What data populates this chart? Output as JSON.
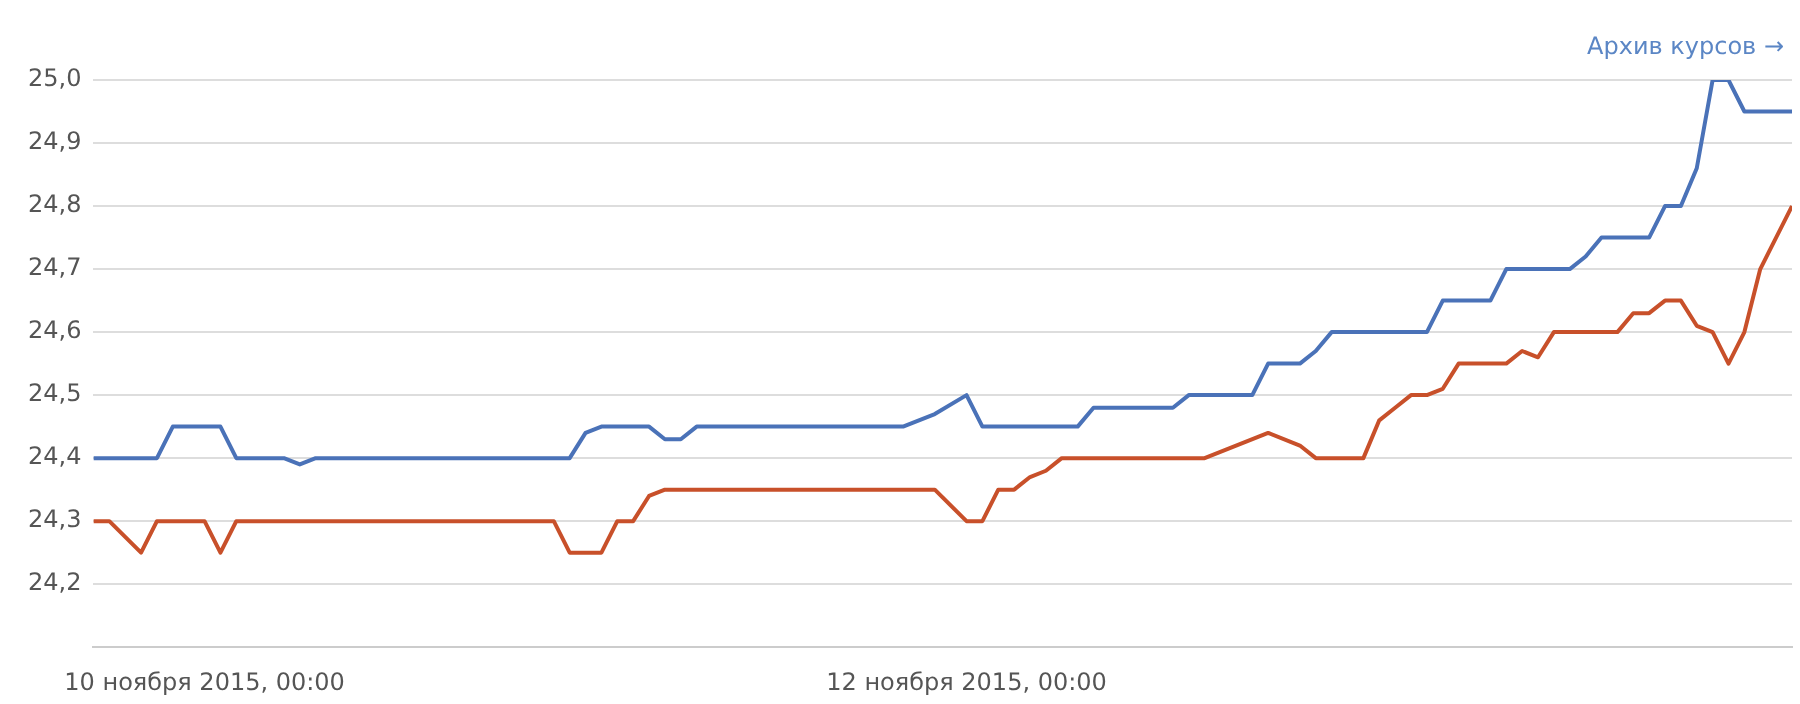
{
  "chart_data": {
    "type": "line",
    "annotations": [
      "Архив курсов →"
    ],
    "xlim": [
      "2015-11-09T17:00",
      "2015-11-14T04:00"
    ],
    "xticks": [
      {
        "value": "2015-11-10T00:00",
        "label": "10 ноября 2015, 00:00"
      },
      {
        "value": "2015-11-12T00:00",
        "label": "12 ноября 2015, 00:00"
      }
    ],
    "ylim": [
      24.1,
      25.0
    ],
    "yticks": [
      {
        "value": 24.2,
        "label": "24,2"
      },
      {
        "value": 24.3,
        "label": "24,3"
      },
      {
        "value": 24.4,
        "label": "24,4"
      },
      {
        "value": 24.5,
        "label": "24,5"
      },
      {
        "value": 24.6,
        "label": "24,6"
      },
      {
        "value": 24.7,
        "label": "24,7"
      },
      {
        "value": 24.8,
        "label": "24,8"
      },
      {
        "value": 24.9,
        "label": "24,9"
      },
      {
        "value": 25.0,
        "label": "25,0"
      }
    ],
    "grid": "y",
    "legend": false,
    "marker": "none",
    "line_style": "solid",
    "series": [
      {
        "color": "#4a72b8",
        "x": [
          "2015-11-09T17:00",
          "2015-11-09T21:00",
          "2015-11-09T22:00",
          "2015-11-10T01:00",
          "2015-11-10T02:00",
          "2015-11-10T05:00",
          "2015-11-10T06:00",
          "2015-11-10T07:00",
          "2015-11-10T23:00",
          "2015-11-11T00:00",
          "2015-11-11T01:00",
          "2015-11-11T04:00",
          "2015-11-11T05:00",
          "2015-11-11T06:00",
          "2015-11-11T07:00",
          "2015-11-11T20:00",
          "2015-11-11T22:00",
          "2015-11-12T00:00",
          "2015-11-12T01:00",
          "2015-11-12T07:00",
          "2015-11-12T08:00",
          "2015-11-12T13:00",
          "2015-11-12T14:00",
          "2015-11-12T18:00",
          "2015-11-12T19:00",
          "2015-11-12T21:00",
          "2015-11-12T22:00",
          "2015-11-12T23:00",
          "2015-11-13T05:00",
          "2015-11-13T06:00",
          "2015-11-13T09:00",
          "2015-11-13T10:00",
          "2015-11-13T14:00",
          "2015-11-13T15:00",
          "2015-11-13T16:00",
          "2015-11-13T19:00",
          "2015-11-13T20:00",
          "2015-11-13T21:00",
          "2015-11-13T22:00",
          "2015-11-13T23:00",
          "2015-11-14T00:00",
          "2015-11-14T01:00",
          "2015-11-14T04:00"
        ],
        "values": [
          24.4,
          24.4,
          24.45,
          24.45,
          24.4,
          24.4,
          24.39,
          24.4,
          24.4,
          24.44,
          24.45,
          24.45,
          24.43,
          24.43,
          24.45,
          24.45,
          24.47,
          24.5,
          24.45,
          24.45,
          24.48,
          24.48,
          24.5,
          24.5,
          24.55,
          24.55,
          24.57,
          24.6,
          24.6,
          24.65,
          24.65,
          24.7,
          24.7,
          24.72,
          24.75,
          24.75,
          24.8,
          24.8,
          24.86,
          25.0,
          25.0,
          24.95,
          24.95
        ]
      },
      {
        "color": "#c8502a",
        "x": [
          "2015-11-09T17:00",
          "2015-11-09T18:00",
          "2015-11-09T20:00",
          "2015-11-09T21:00",
          "2015-11-10T00:00",
          "2015-11-10T01:00",
          "2015-11-10T02:00",
          "2015-11-10T22:00",
          "2015-11-10T23:00",
          "2015-11-11T01:00",
          "2015-11-11T02:00",
          "2015-11-11T03:00",
          "2015-11-11T04:00",
          "2015-11-11T05:00",
          "2015-11-11T22:00",
          "2015-11-12T00:00",
          "2015-11-12T01:00",
          "2015-11-12T02:00",
          "2015-11-12T03:00",
          "2015-11-12T04:00",
          "2015-11-12T05:00",
          "2015-11-12T06:00",
          "2015-11-12T15:00",
          "2015-11-12T19:00",
          "2015-11-12T21:00",
          "2015-11-12T22:00",
          "2015-11-13T01:00",
          "2015-11-13T02:00",
          "2015-11-13T03:00",
          "2015-11-13T04:00",
          "2015-11-13T05:00",
          "2015-11-13T06:00",
          "2015-11-13T07:00",
          "2015-11-13T10:00",
          "2015-11-13T11:00",
          "2015-11-13T12:00",
          "2015-11-13T13:00",
          "2015-11-13T17:00",
          "2015-11-13T18:00",
          "2015-11-13T19:00",
          "2015-11-13T20:00",
          "2015-11-13T21:00",
          "2015-11-13T22:00",
          "2015-11-13T23:00",
          "2015-11-14T00:00",
          "2015-11-14T01:00",
          "2015-11-14T02:00",
          "2015-11-14T04:00"
        ],
        "values": [
          24.3,
          24.3,
          24.25,
          24.3,
          24.3,
          24.25,
          24.3,
          24.3,
          24.25,
          24.25,
          24.3,
          24.3,
          24.34,
          24.35,
          24.35,
          24.3,
          24.3,
          24.35,
          24.35,
          24.37,
          24.38,
          24.4,
          24.4,
          24.44,
          24.42,
          24.4,
          24.4,
          24.46,
          24.48,
          24.5,
          24.5,
          24.51,
          24.55,
          24.55,
          24.57,
          24.56,
          24.6,
          24.6,
          24.63,
          24.63,
          24.65,
          24.65,
          24.61,
          24.6,
          24.55,
          24.6,
          24.7,
          24.8
        ]
      }
    ]
  }
}
